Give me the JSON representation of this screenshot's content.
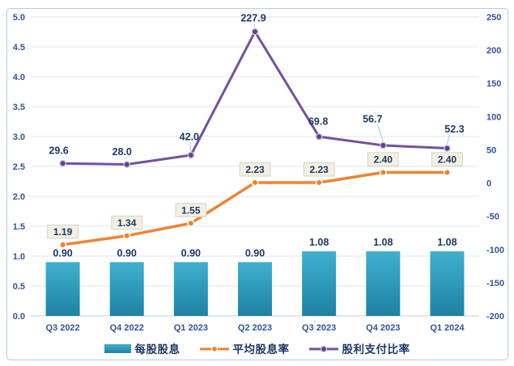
{
  "chart_data": {
    "type": "combo-bar-line",
    "categories": [
      "Q3 2022",
      "Q4 2022",
      "Q1 2023",
      "Q2 2023",
      "Q3 2023",
      "Q4 2023",
      "Q1 2024"
    ],
    "series": [
      {
        "name": "每股股息",
        "type": "bar",
        "axis": "left",
        "values": [
          0.9,
          0.9,
          0.9,
          0.9,
          1.08,
          1.08,
          1.08
        ],
        "labels": [
          "0.90",
          "0.90",
          "0.90",
          "0.90",
          "1.08",
          "1.08",
          "1.08"
        ]
      },
      {
        "name": "平均股息率",
        "type": "line",
        "axis": "left",
        "values": [
          1.19,
          1.34,
          1.55,
          2.23,
          2.23,
          2.4,
          2.4
        ],
        "labels": [
          "1.19",
          "1.34",
          "1.55",
          "2.23",
          "2.23",
          "2.40",
          "2.40"
        ]
      },
      {
        "name": "股利支付比率",
        "type": "line",
        "axis": "right",
        "values": [
          29.6,
          28.0,
          42.0,
          227.9,
          69.8,
          56.7,
          52.3
        ],
        "labels": [
          "29.6",
          "28.0",
          "42.0",
          "227.9",
          "69.8",
          "56.7",
          "52.3"
        ]
      }
    ],
    "left_axis": {
      "min": 0.0,
      "max": 5.0,
      "step": 0.5,
      "ticks": [
        "5.0",
        "4.5",
        "4.0",
        "3.5",
        "3.0",
        "2.5",
        "2.0",
        "1.5",
        "1.0",
        "0.5",
        "0.0"
      ]
    },
    "right_axis": {
      "min": -200,
      "max": 250,
      "step": 50,
      "ticks": [
        "250",
        "200",
        "150",
        "100",
        "50",
        "0",
        "-50",
        "-100",
        "-150",
        "-200"
      ]
    },
    "grid": true,
    "legend_position": "bottom",
    "colors": {
      "bar_top": "#3fb0cf",
      "bar_bottom": "#1e82a4",
      "orange_line": "#f08232",
      "purple_line": "#74519e",
      "purple_marker_fill": "#5e4389",
      "purple_marker_ring": "#c9b8e0",
      "orange_marker_ring": "#ffffff",
      "data_label": "#1f3864",
      "tick_label": "#30549b",
      "gridline": "#dde7f3",
      "axis_line": "#c3d2e6",
      "label_box_bg": "#f2efe3",
      "label_box_border": "#d9d4c0",
      "leader_line": "#a9c6e8",
      "frame_border": "#b9c9e6"
    }
  }
}
